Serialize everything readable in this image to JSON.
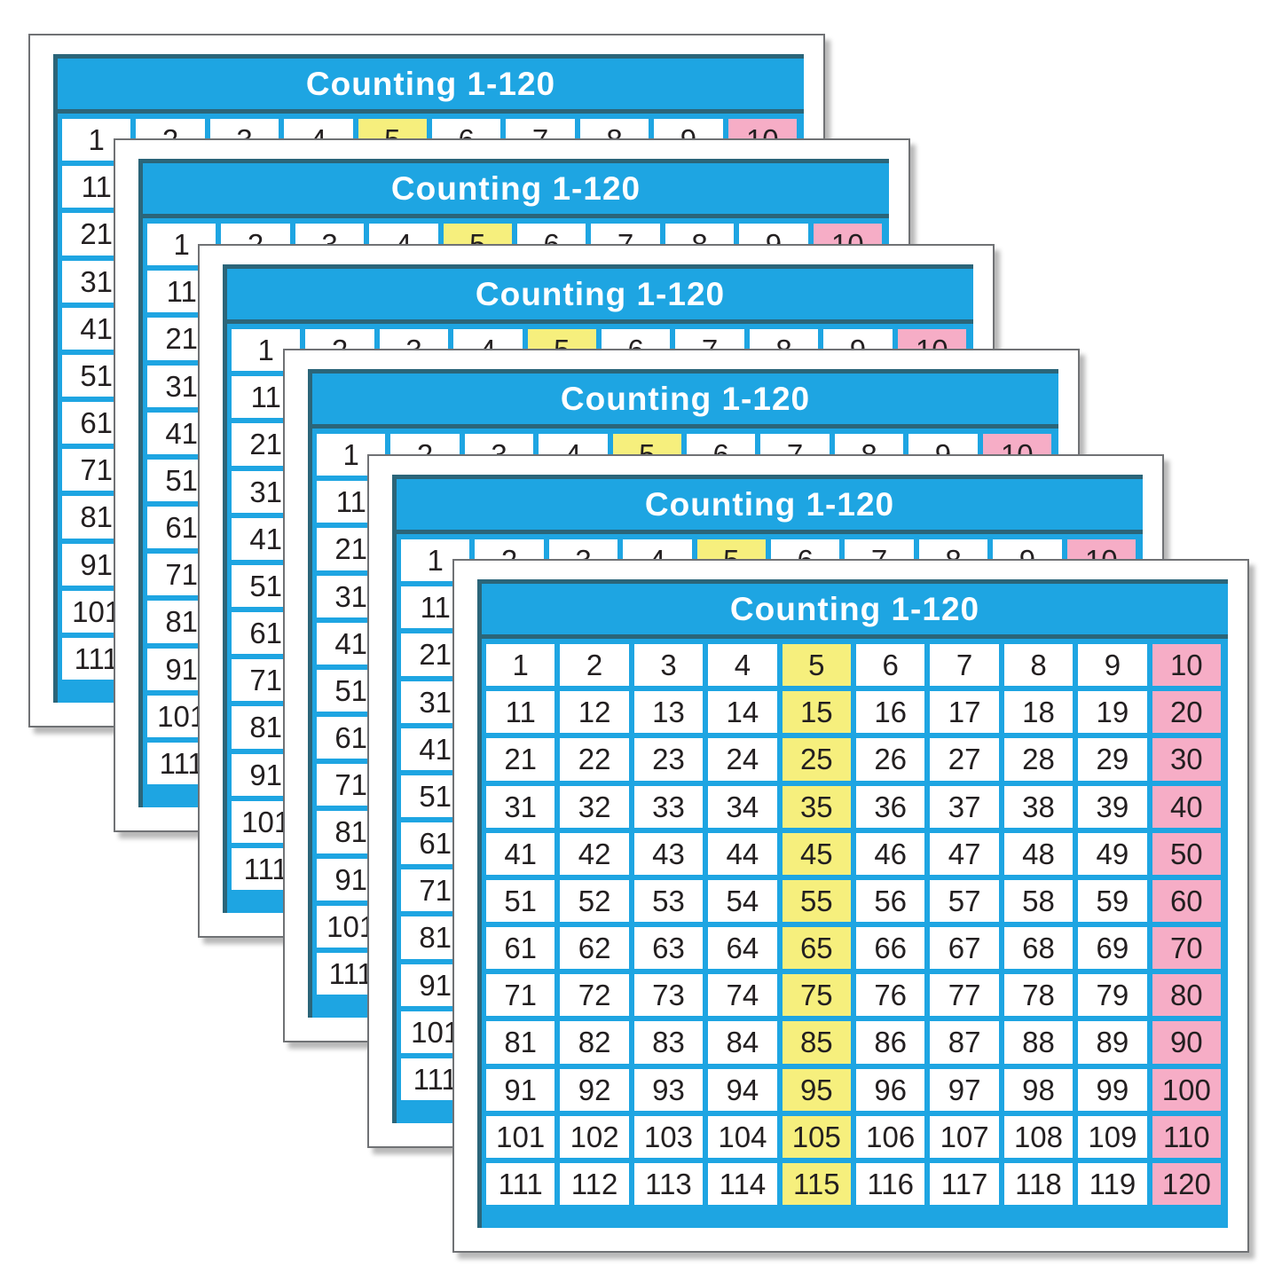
{
  "poster": {
    "title": "Counting 1-120",
    "card_count": 6,
    "columns": 10,
    "rows": [
      [
        1,
        2,
        3,
        4,
        5,
        6,
        7,
        8,
        9,
        10
      ],
      [
        11,
        12,
        13,
        14,
        15,
        16,
        17,
        18,
        19,
        20
      ],
      [
        21,
        22,
        23,
        24,
        25,
        26,
        27,
        28,
        29,
        30
      ],
      [
        31,
        32,
        33,
        34,
        35,
        36,
        37,
        38,
        39,
        40
      ],
      [
        41,
        42,
        43,
        44,
        45,
        46,
        47,
        48,
        49,
        50
      ],
      [
        51,
        52,
        53,
        54,
        55,
        56,
        57,
        58,
        59,
        60
      ],
      [
        61,
        62,
        63,
        64,
        65,
        66,
        67,
        68,
        69,
        70
      ],
      [
        71,
        72,
        73,
        74,
        75,
        76,
        77,
        78,
        79,
        80
      ],
      [
        81,
        82,
        83,
        84,
        85,
        86,
        87,
        88,
        89,
        90
      ],
      [
        91,
        92,
        93,
        94,
        95,
        96,
        97,
        98,
        99,
        100
      ],
      [
        101,
        102,
        103,
        104,
        105,
        106,
        107,
        108,
        109,
        110
      ],
      [
        111,
        112,
        113,
        114,
        115,
        116,
        117,
        118,
        119,
        120
      ]
    ],
    "highlights": {
      "yellow_column_index": 4,
      "pink_column_index": 9
    },
    "colors": {
      "panel_blue": "#1ea5e2",
      "dark_edge": "#2b6579",
      "cell_white": "#ffffff",
      "highlight_yellow": "#f6ef7d",
      "highlight_pink": "#f6adc6",
      "number_text": "#231f20",
      "title_text": "#ffffff",
      "card_border": "#707275"
    }
  }
}
